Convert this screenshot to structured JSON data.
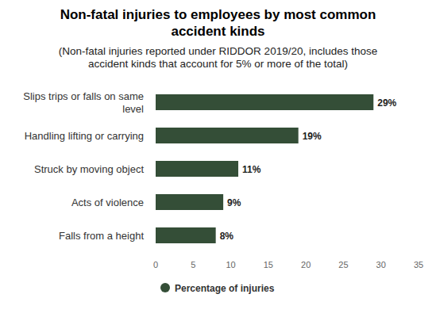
{
  "chart_data": {
    "type": "bar",
    "orientation": "horizontal",
    "title": "Non-fatal injuries to employees by most common accident kinds",
    "subtitle": "(Non-fatal injuries reported under RIDDOR 2019/20, includes those accident kinds that account for 5% or more of the total)",
    "categories": [
      "Slips trips or falls on same level",
      "Handling lifting or carrying",
      "Struck by moving object",
      "Acts of violence",
      "Falls from a height"
    ],
    "series": [
      {
        "name": "Percentage of injuries",
        "color": "#344e37",
        "values": [
          29,
          19,
          11,
          9,
          8
        ],
        "value_labels": [
          "29%",
          "19%",
          "11%",
          "9%",
          "8%"
        ]
      }
    ],
    "xlim": [
      0,
      35
    ],
    "xticks": [
      0,
      5,
      10,
      15,
      20,
      25,
      30,
      35
    ],
    "grid": false,
    "data_labels": true,
    "legend": "bottom"
  }
}
